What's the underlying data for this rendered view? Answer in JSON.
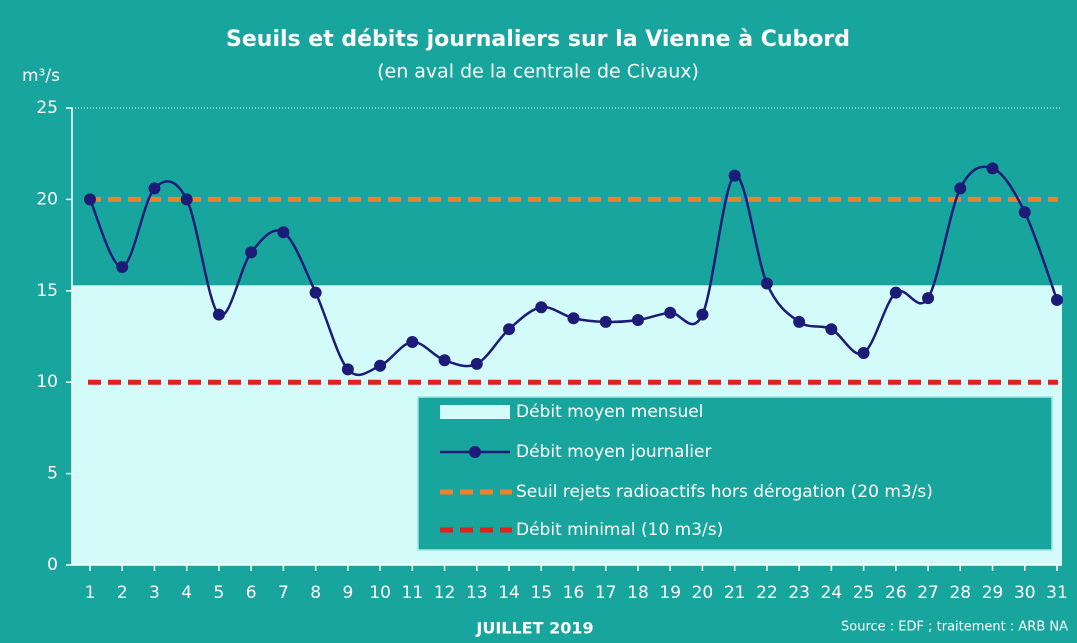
{
  "chart_data": {
    "type": "line",
    "title": "Seuils et débits journaliers sur la Vienne à Cubord",
    "subtitle": "(en aval de la centrale de Civaux)",
    "y_label": "m³/s",
    "x_label": "JUILLET 2019",
    "source": "Source : EDF ; traitement : ARB NA",
    "categories": [
      "1",
      "2",
      "3",
      "4",
      "5",
      "6",
      "7",
      "8",
      "9",
      "10",
      "11",
      "12",
      "13",
      "14",
      "15",
      "16",
      "17",
      "18",
      "19",
      "20",
      "21",
      "22",
      "23",
      "24",
      "25",
      "26",
      "27",
      "28",
      "29",
      "30",
      "31"
    ],
    "series": [
      {
        "name": "Débit moyen journalier",
        "color": "#1c1c78",
        "values": [
          20.0,
          16.3,
          20.6,
          20.0,
          13.7,
          17.1,
          18.2,
          14.9,
          10.7,
          10.9,
          12.2,
          11.2,
          11.0,
          12.9,
          14.1,
          13.5,
          13.3,
          13.4,
          13.8,
          13.7,
          21.3,
          15.4,
          13.3,
          12.9,
          11.6,
          14.9,
          14.6,
          20.6,
          21.7,
          19.3,
          14.5
        ]
      }
    ],
    "mean_area": {
      "name": "Débit moyen mensuel",
      "color": "#d2fbfa",
      "value": 15.3
    },
    "reference_lines": [
      {
        "name": "Seuil rejets radioactifs hors dérogation (20 m3/s)",
        "color": "#f0802a",
        "value": 20
      },
      {
        "name": "Débit minimal (10 m3/s)",
        "color": "#e3201b",
        "value": 10
      }
    ],
    "ylim": [
      0,
      25
    ],
    "yticks": [
      0,
      5,
      10,
      15,
      20,
      25
    ]
  }
}
